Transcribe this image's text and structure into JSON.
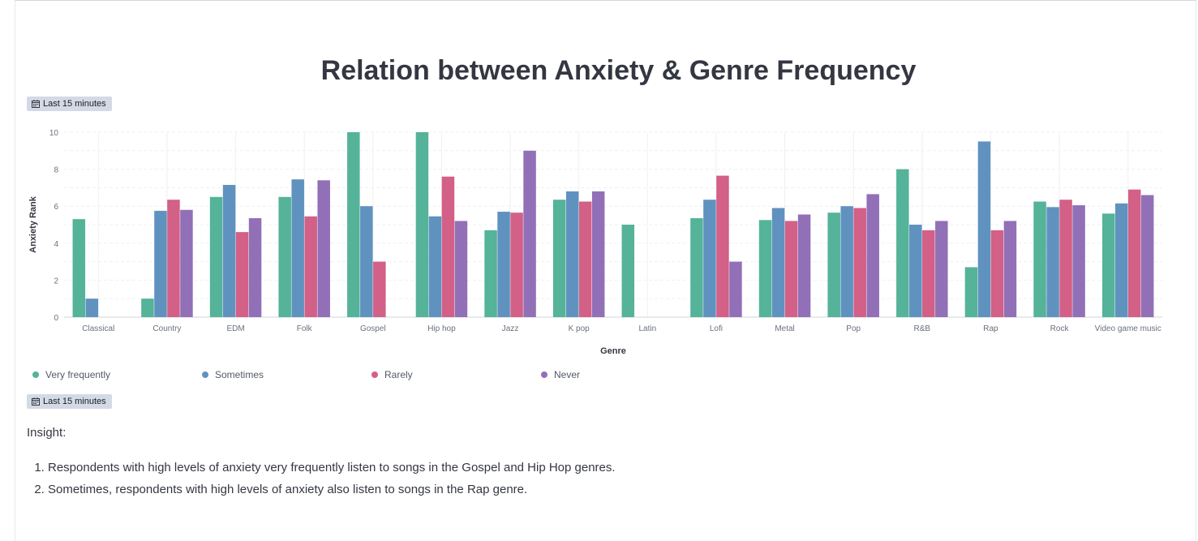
{
  "title": "Relation between Anxiety & Genre Frequency",
  "time_badge_label": "Last 15 minutes",
  "colors": {
    "very_frequently": "#54b399",
    "sometimes": "#6092c0",
    "rarely": "#d36086",
    "never": "#9170b8",
    "grid": "#eef0f3",
    "axis_text": "#69707d"
  },
  "chart_data": {
    "type": "bar",
    "title": "",
    "xlabel": "Genre",
    "ylabel": "Anxiety Rank",
    "ylim": [
      0,
      10
    ],
    "yticks": [
      0,
      2,
      4,
      6,
      8,
      10
    ],
    "grid": true,
    "legend_position": "bottom",
    "categories": [
      "Classical",
      "Country",
      "EDM",
      "Folk",
      "Gospel",
      "Hip hop",
      "Jazz",
      "K pop",
      "Latin",
      "Lofi",
      "Metal",
      "Pop",
      "R&B",
      "Rap",
      "Rock",
      "Video game music"
    ],
    "series": [
      {
        "name": "Very frequently",
        "color": "#54b399",
        "values": [
          5.3,
          1.0,
          6.5,
          6.5,
          10.0,
          10.0,
          4.7,
          6.35,
          5.0,
          5.35,
          5.25,
          5.65,
          8.0,
          2.7,
          6.25,
          5.6
        ]
      },
      {
        "name": "Sometimes",
        "color": "#6092c0",
        "values": [
          1.0,
          5.75,
          7.15,
          7.45,
          6.0,
          5.45,
          5.7,
          6.8,
          null,
          6.35,
          5.9,
          6.0,
          5.0,
          9.5,
          5.95,
          6.15
        ]
      },
      {
        "name": "Rarely",
        "color": "#d36086",
        "values": [
          null,
          6.35,
          4.6,
          5.45,
          3.0,
          7.6,
          5.65,
          6.25,
          null,
          7.65,
          5.2,
          5.9,
          4.7,
          4.7,
          6.35,
          6.9
        ]
      },
      {
        "name": "Never",
        "color": "#9170b8",
        "values": [
          null,
          5.8,
          5.35,
          7.4,
          null,
          5.2,
          9.0,
          6.8,
          null,
          3.0,
          5.55,
          6.65,
          5.2,
          5.2,
          6.05,
          6.6
        ]
      }
    ]
  },
  "insight": {
    "heading": "Insight:",
    "items": [
      "Respondents with high levels of anxiety very frequently listen to songs in the Gospel and Hip Hop genres.",
      "Sometimes, respondents with high levels of anxiety also listen to songs in the Rap genre."
    ]
  }
}
